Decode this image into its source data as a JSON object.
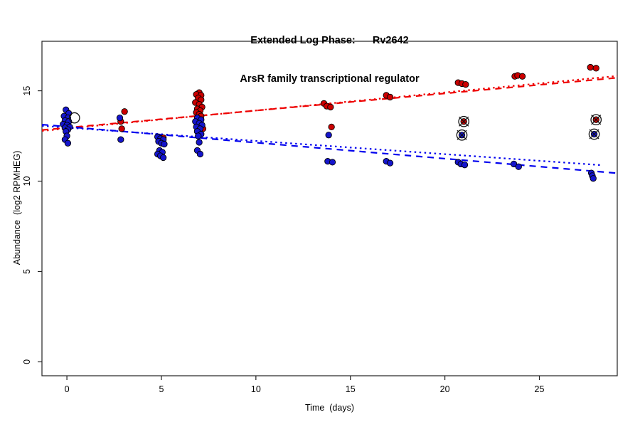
{
  "figure": {
    "title_line1": "Extended Log Phase:      Rv2642",
    "title_line2": "ArsR family transcriptional regulator",
    "x_axis_label": "Time  (days)",
    "y_axis_label": "Abundance  (log2 RPMHEG)"
  },
  "chart_data": {
    "type": "scatter",
    "title": "Extended Log Phase: Rv2642",
    "subtitle": "ArsR family transcriptional regulator",
    "xlabel": "Time (days)",
    "ylabel": "Abundance (log2 RPMHEG)",
    "xlim": [
      -1.32,
      29.12
    ],
    "ylim": [
      -0.77,
      17.74
    ],
    "x_ticks": [
      0,
      5,
      10,
      15,
      20,
      25
    ],
    "y_ticks": [
      0,
      5,
      10,
      15
    ],
    "grid": false,
    "legend": "none",
    "point_radius": 4.2,
    "box_color": "#222222",
    "series": [
      {
        "name": "red-condition",
        "marker": "filled-circle",
        "fill": "#CC0000",
        "stroke": "#000000",
        "points": [
          [
            3.05,
            13.85
          ],
          [
            2.85,
            13.3
          ],
          [
            2.9,
            12.9
          ],
          [
            5.1,
            12.4
          ],
          [
            7.0,
            14.9
          ],
          [
            6.85,
            14.8
          ],
          [
            7.1,
            14.75
          ],
          [
            6.95,
            14.6
          ],
          [
            7.1,
            14.5
          ],
          [
            6.8,
            14.35
          ],
          [
            7.0,
            14.25
          ],
          [
            7.15,
            14.1
          ],
          [
            6.9,
            14.0
          ],
          [
            7.05,
            13.9
          ],
          [
            6.85,
            13.8
          ],
          [
            7.0,
            13.7
          ],
          [
            7.1,
            13.6
          ],
          [
            6.9,
            13.35
          ],
          [
            7.2,
            12.9
          ],
          [
            13.6,
            14.3
          ],
          [
            13.75,
            14.15
          ],
          [
            13.95,
            14.1
          ],
          [
            14.0,
            13.0
          ],
          [
            16.9,
            14.75
          ],
          [
            17.1,
            14.65
          ],
          [
            20.7,
            15.45
          ],
          [
            20.9,
            15.4
          ],
          [
            21.1,
            15.35
          ],
          [
            23.7,
            15.8
          ],
          [
            23.85,
            15.85
          ],
          [
            24.1,
            15.8
          ],
          [
            27.7,
            16.3
          ],
          [
            28.0,
            16.25
          ]
        ]
      },
      {
        "name": "blue-condition",
        "marker": "filled-circle",
        "fill": "#1515CC",
        "stroke": "#000000",
        "points": [
          [
            -0.05,
            13.95
          ],
          [
            0.1,
            13.75
          ],
          [
            -0.15,
            13.6
          ],
          [
            0.05,
            13.5
          ],
          [
            -0.1,
            13.35
          ],
          [
            0.1,
            13.3
          ],
          [
            -0.2,
            13.15
          ],
          [
            0.0,
            13.1
          ],
          [
            0.15,
            13.0
          ],
          [
            -0.1,
            12.95
          ],
          [
            0.05,
            12.85
          ],
          [
            -0.05,
            12.75
          ],
          [
            0.0,
            12.5
          ],
          [
            -0.1,
            12.3
          ],
          [
            0.05,
            12.1
          ],
          [
            2.8,
            13.5
          ],
          [
            2.85,
            12.3
          ],
          [
            4.8,
            12.45
          ],
          [
            4.95,
            12.35
          ],
          [
            5.1,
            12.3
          ],
          [
            4.85,
            12.2
          ],
          [
            5.0,
            12.1
          ],
          [
            5.15,
            12.05
          ],
          [
            4.9,
            11.7
          ],
          [
            5.05,
            11.6
          ],
          [
            4.8,
            11.5
          ],
          [
            4.95,
            11.4
          ],
          [
            5.1,
            11.3
          ],
          [
            6.9,
            13.5
          ],
          [
            7.1,
            13.4
          ],
          [
            6.8,
            13.3
          ],
          [
            7.0,
            13.2
          ],
          [
            7.15,
            13.1
          ],
          [
            6.85,
            13.0
          ],
          [
            7.05,
            12.9
          ],
          [
            6.9,
            12.75
          ],
          [
            7.1,
            12.6
          ],
          [
            6.95,
            12.5
          ],
          [
            7.0,
            12.15
          ],
          [
            6.9,
            11.7
          ],
          [
            7.05,
            11.5
          ],
          [
            13.85,
            12.55
          ],
          [
            13.8,
            11.1
          ],
          [
            14.05,
            11.05
          ],
          [
            16.9,
            11.1
          ],
          [
            17.1,
            11.0
          ],
          [
            20.7,
            11.05
          ],
          [
            20.85,
            10.95
          ],
          [
            21.05,
            10.9
          ],
          [
            23.65,
            10.95
          ],
          [
            23.9,
            10.8
          ],
          [
            27.75,
            10.45
          ],
          [
            27.8,
            10.3
          ],
          [
            27.85,
            10.15
          ]
        ]
      }
    ],
    "outlier_points": [
      {
        "x": 0.4,
        "y": 13.5,
        "fill": "none",
        "ring_only": true
      },
      {
        "x": 21.0,
        "y": 13.3,
        "fill": "#CC0000",
        "ring_only": false
      },
      {
        "x": 20.9,
        "y": 12.55,
        "fill": "#1515CC",
        "ring_only": false
      },
      {
        "x": 28.0,
        "y": 13.4,
        "fill": "#CC0000",
        "ring_only": false
      },
      {
        "x": 27.9,
        "y": 12.6,
        "fill": "#1515CC",
        "ring_only": false
      }
    ],
    "trend_lines": [
      {
        "name": "red-fit-dashed",
        "color": "#EE0000",
        "style": "dashed",
        "x1": -1.32,
        "y1": 12.83,
        "x2": 29.12,
        "y2": 15.72
      },
      {
        "name": "red-fit-dotted",
        "color": "#EE0000",
        "style": "dotted",
        "x1": -1.32,
        "y1": 12.78,
        "x2": 29.12,
        "y2": 15.82
      },
      {
        "name": "blue-fit-dashed",
        "color": "#0000EE",
        "style": "dashed",
        "x1": -1.32,
        "y1": 13.13,
        "x2": 29.12,
        "y2": 10.44
      },
      {
        "name": "blue-fit-dotted",
        "color": "#0000EE",
        "style": "dotted",
        "x1": -1.32,
        "y1": 13.06,
        "x2": 28.35,
        "y2": 10.88
      }
    ]
  }
}
